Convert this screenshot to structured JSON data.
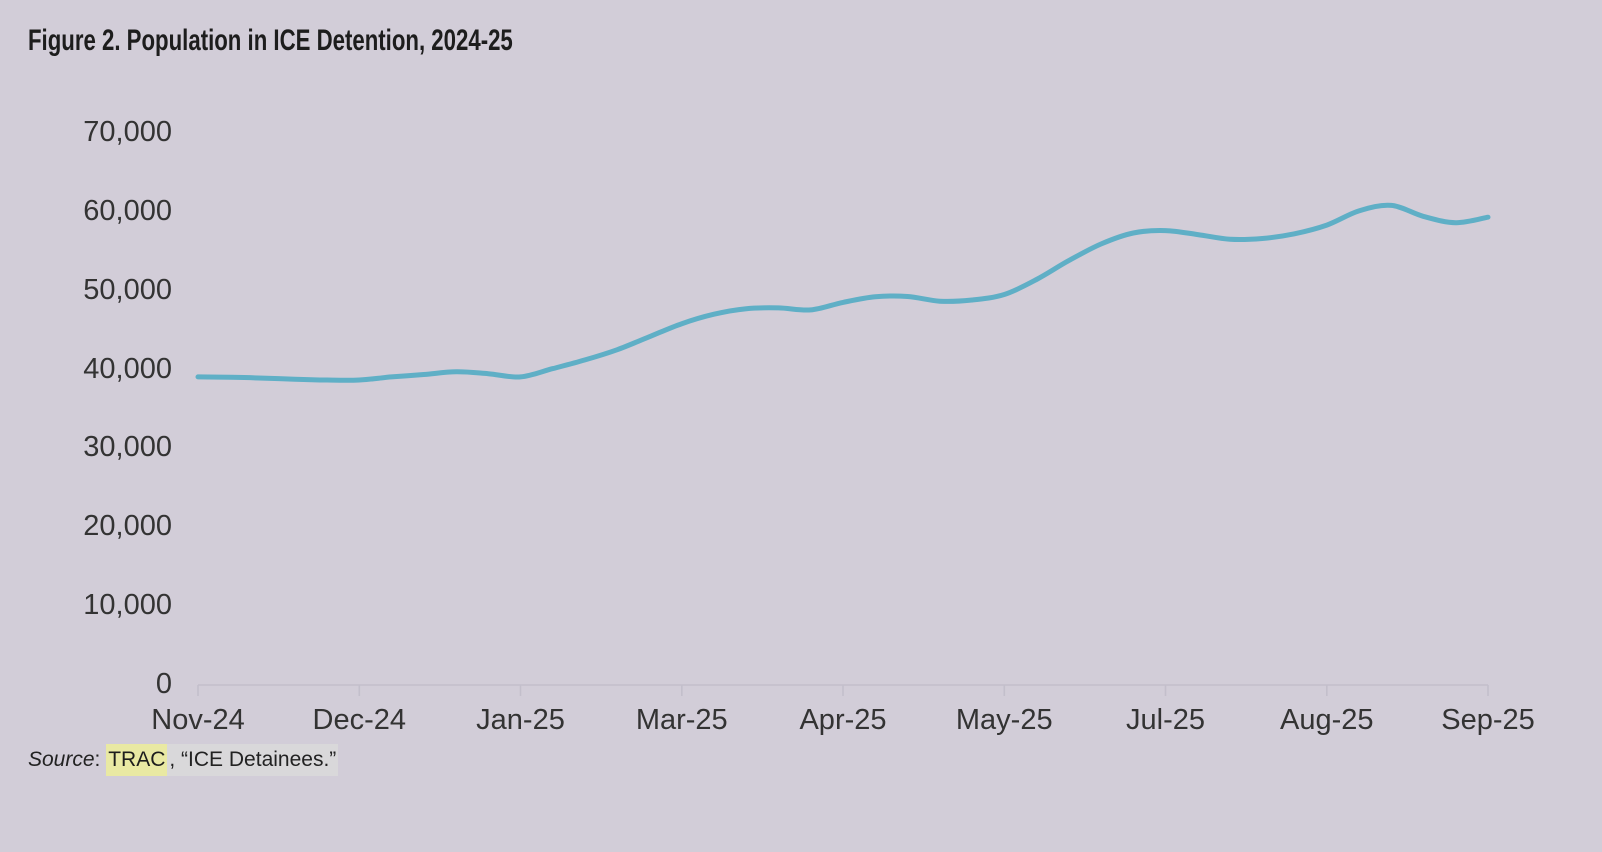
{
  "title": "Figure 2. Population in ICE Detention, 2024-25",
  "source": {
    "label": "Source",
    "separator": ": ",
    "link_text": "TRAC",
    "rest": ", “ICE Detainees.”"
  },
  "colors": {
    "background": "#d2cdd8",
    "line": "#5fafc6",
    "axis": "#c3bfcb",
    "title_text": "#1d1d1d",
    "axis_text": "#333333",
    "highlight_yellow": "#e9e9a3",
    "highlight_gray": "#d9d8da"
  },
  "chart_data": {
    "type": "line",
    "title": "Figure 2. Population in ICE Detention, 2024-25",
    "xlabel": "",
    "ylabel": "",
    "grid": false,
    "legend": "none",
    "ylim": [
      0,
      70000
    ],
    "y_ticks": [
      0,
      10000,
      20000,
      30000,
      40000,
      50000,
      60000,
      70000
    ],
    "y_tick_labels": [
      "0",
      "10,000",
      "20,000",
      "30,000",
      "40,000",
      "50,000",
      "60,000",
      "70,000"
    ],
    "x_tick_labels": [
      "Nov-24",
      "Dec-24",
      "Jan-25",
      "Mar-25",
      "Apr-25",
      "May-25",
      "Jul-25",
      "Aug-25",
      "Sep-25"
    ],
    "points_per_label": 5,
    "series": [
      {
        "name": "Population in ICE detention",
        "values": [
          38950,
          38900,
          38800,
          38650,
          38550,
          38550,
          38950,
          39250,
          39600,
          39350,
          38950,
          40000,
          41100,
          42400,
          44050,
          45700,
          46900,
          47600,
          47700,
          47450,
          48400,
          49100,
          49150,
          48550,
          48700,
          49400,
          51300,
          53700,
          55800,
          57200,
          57500,
          57000,
          56400,
          56500,
          57100,
          58200,
          60000,
          60700,
          59300,
          58500,
          59200
        ]
      }
    ]
  }
}
